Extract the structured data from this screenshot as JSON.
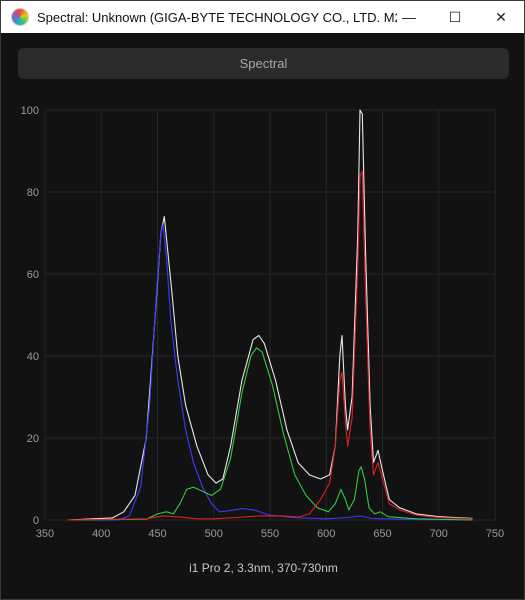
{
  "window": {
    "title": "Spectral: Unknown (GIGA-BYTE TECHNOLOGY CO., LTD. M27UP...",
    "controls": {
      "minimize": "—",
      "maximize": "☐",
      "close": "✕"
    }
  },
  "tab": {
    "label": "Spectral"
  },
  "footer": {
    "label": "i1 Pro 2, 3.3nm, 370-730nm"
  },
  "chart_data": {
    "type": "line",
    "xlim": [
      350,
      750
    ],
    "ylim": [
      0,
      100
    ],
    "x_ticks": [
      350,
      400,
      450,
      500,
      550,
      600,
      650,
      700,
      750
    ],
    "y_ticks": [
      0,
      20,
      40,
      60,
      80,
      100
    ],
    "grid": true,
    "series": [
      {
        "color": "#e8e8e8",
        "points": [
          [
            370,
            0
          ],
          [
            410,
            0.5
          ],
          [
            420,
            2
          ],
          [
            430,
            6
          ],
          [
            440,
            20
          ],
          [
            448,
            50
          ],
          [
            453,
            70
          ],
          [
            456,
            74
          ],
          [
            459,
            66
          ],
          [
            463,
            55
          ],
          [
            468,
            40
          ],
          [
            475,
            28
          ],
          [
            485,
            18
          ],
          [
            495,
            11
          ],
          [
            502,
            9
          ],
          [
            508,
            10
          ],
          [
            515,
            18
          ],
          [
            525,
            34
          ],
          [
            535,
            44
          ],
          [
            540,
            45
          ],
          [
            545,
            43
          ],
          [
            555,
            34
          ],
          [
            565,
            22
          ],
          [
            575,
            14
          ],
          [
            585,
            11
          ],
          [
            595,
            10
          ],
          [
            603,
            11
          ],
          [
            608,
            18
          ],
          [
            612,
            40
          ],
          [
            614,
            45
          ],
          [
            617,
            28
          ],
          [
            619,
            22
          ],
          [
            623,
            30
          ],
          [
            628,
            70
          ],
          [
            630,
            100
          ],
          [
            632,
            99
          ],
          [
            635,
            65
          ],
          [
            639,
            28
          ],
          [
            642,
            14
          ],
          [
            646,
            17
          ],
          [
            650,
            12
          ],
          [
            656,
            5
          ],
          [
            665,
            3
          ],
          [
            680,
            1.5
          ],
          [
            700,
            0.8
          ],
          [
            730,
            0.4
          ]
        ]
      },
      {
        "color": "#3a3aff",
        "points": [
          [
            370,
            0
          ],
          [
            415,
            0
          ],
          [
            425,
            1
          ],
          [
            435,
            8
          ],
          [
            443,
            28
          ],
          [
            449,
            55
          ],
          [
            453,
            70
          ],
          [
            455,
            72
          ],
          [
            458,
            64
          ],
          [
            462,
            48
          ],
          [
            468,
            34
          ],
          [
            475,
            22
          ],
          [
            482,
            14
          ],
          [
            490,
            8
          ],
          [
            498,
            4
          ],
          [
            505,
            2
          ],
          [
            515,
            2.3
          ],
          [
            525,
            2.8
          ],
          [
            535,
            2.5
          ],
          [
            550,
            1.2
          ],
          [
            570,
            0.6
          ],
          [
            600,
            0.3
          ],
          [
            620,
            0.6
          ],
          [
            630,
            1
          ],
          [
            640,
            0.4
          ],
          [
            680,
            0.1
          ],
          [
            730,
            0
          ]
        ]
      },
      {
        "color": "#2ecc40",
        "points": [
          [
            370,
            0
          ],
          [
            440,
            0.2
          ],
          [
            450,
            1.5
          ],
          [
            458,
            2
          ],
          [
            464,
            1.5
          ],
          [
            470,
            4
          ],
          [
            476,
            7.5
          ],
          [
            482,
            8
          ],
          [
            490,
            7
          ],
          [
            498,
            6
          ],
          [
            506,
            7.5
          ],
          [
            515,
            15
          ],
          [
            525,
            31
          ],
          [
            533,
            40
          ],
          [
            538,
            42
          ],
          [
            543,
            41
          ],
          [
            552,
            33
          ],
          [
            562,
            21
          ],
          [
            572,
            11
          ],
          [
            582,
            6
          ],
          [
            592,
            3
          ],
          [
            602,
            2
          ],
          [
            608,
            4
          ],
          [
            613,
            7.5
          ],
          [
            617,
            5
          ],
          [
            620,
            2.5
          ],
          [
            625,
            5
          ],
          [
            629,
            12
          ],
          [
            631,
            13
          ],
          [
            634,
            10
          ],
          [
            638,
            3
          ],
          [
            643,
            1.5
          ],
          [
            648,
            2
          ],
          [
            655,
            0.8
          ],
          [
            680,
            0.3
          ],
          [
            730,
            0
          ]
        ]
      },
      {
        "color": "#e02020",
        "points": [
          [
            370,
            0
          ],
          [
            440,
            0.3
          ],
          [
            455,
            1
          ],
          [
            470,
            0.7
          ],
          [
            485,
            0.3
          ],
          [
            500,
            0.3
          ],
          [
            520,
            0.6
          ],
          [
            540,
            1
          ],
          [
            560,
            1
          ],
          [
            575,
            0.7
          ],
          [
            585,
            1.5
          ],
          [
            595,
            5
          ],
          [
            603,
            9
          ],
          [
            608,
            18
          ],
          [
            612,
            34
          ],
          [
            614,
            36
          ],
          [
            617,
            24
          ],
          [
            619,
            18
          ],
          [
            623,
            25
          ],
          [
            628,
            62
          ],
          [
            630,
            84
          ],
          [
            632,
            85
          ],
          [
            635,
            55
          ],
          [
            639,
            22
          ],
          [
            642,
            11
          ],
          [
            646,
            14
          ],
          [
            650,
            10
          ],
          [
            656,
            4
          ],
          [
            665,
            2.5
          ],
          [
            680,
            1.2
          ],
          [
            700,
            0.6
          ],
          [
            730,
            0.3
          ]
        ]
      }
    ]
  }
}
